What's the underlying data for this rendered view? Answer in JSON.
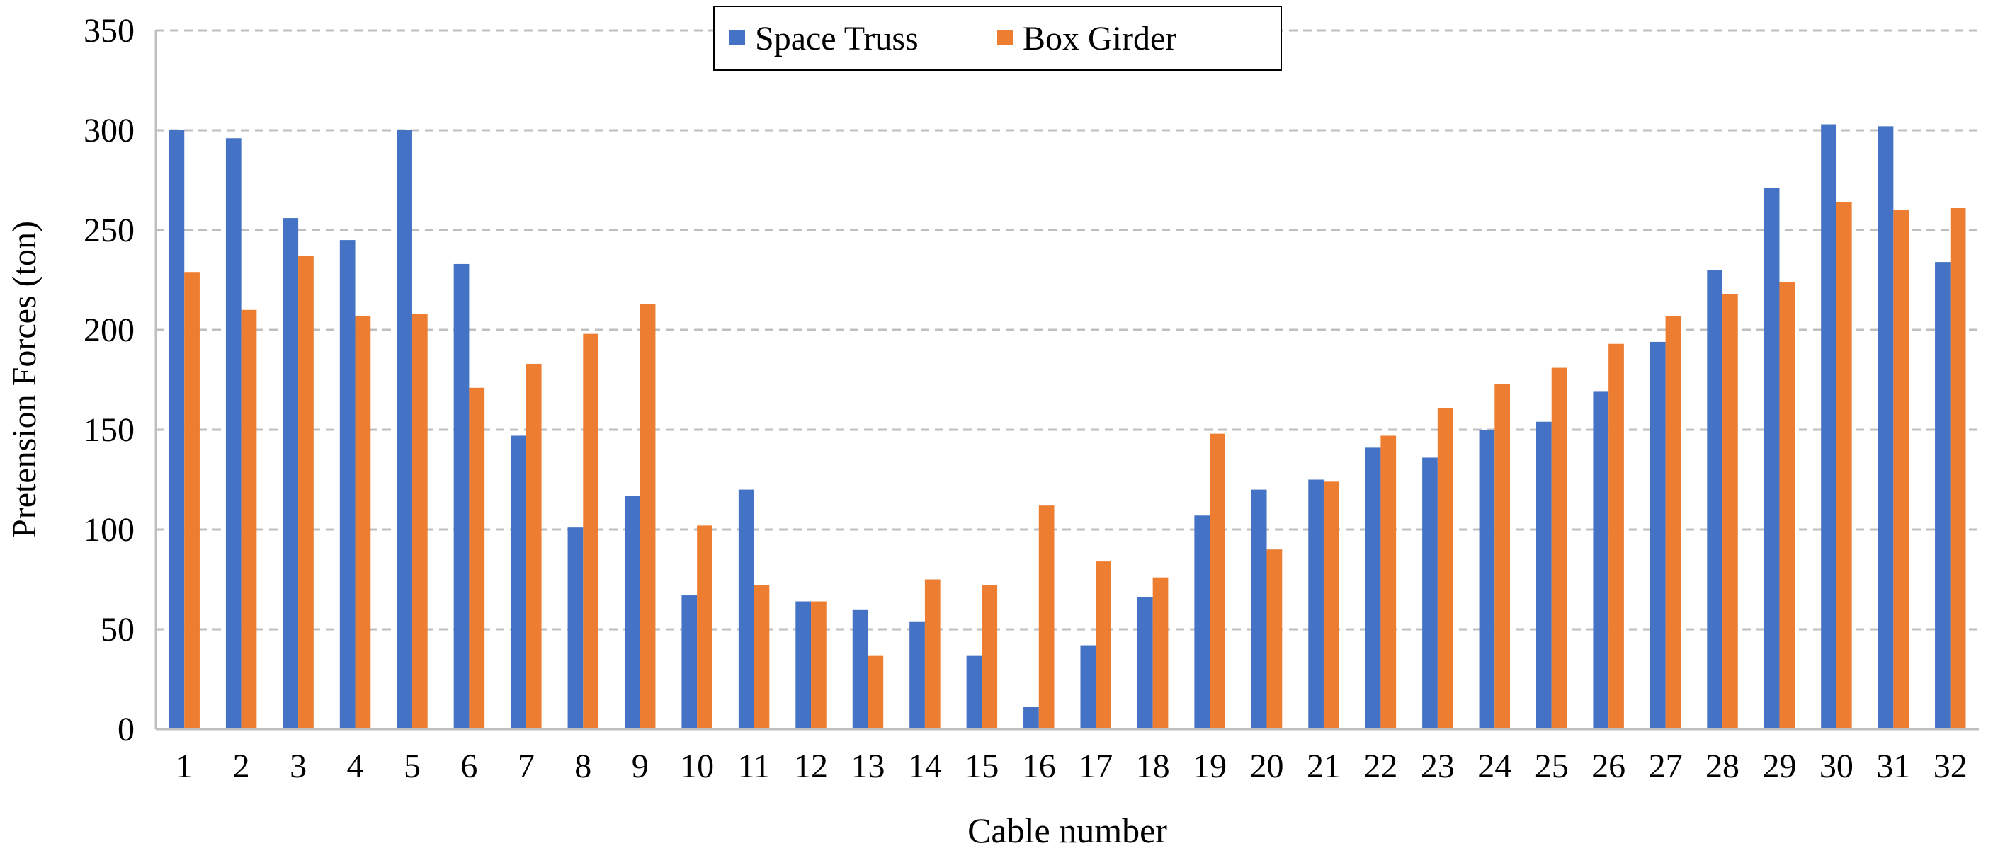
{
  "chart_data": {
    "type": "bar",
    "title": "",
    "xlabel": "Cable number",
    "ylabel": "Pretension Forces (ton)",
    "ylim": [
      0,
      350
    ],
    "yticks": [
      0,
      50,
      100,
      150,
      200,
      250,
      300,
      350
    ],
    "grid": true,
    "legend_position": "top-center",
    "categories": [
      "1",
      "2",
      "3",
      "4",
      "5",
      "6",
      "7",
      "8",
      "9",
      "10",
      "11",
      "12",
      "13",
      "14",
      "15",
      "16",
      "17",
      "18",
      "19",
      "20",
      "21",
      "22",
      "23",
      "24",
      "25",
      "26",
      "27",
      "28",
      "29",
      "30",
      "31",
      "32"
    ],
    "series": [
      {
        "name": "Space Truss",
        "color": "#4472C4",
        "values": [
          300,
          296,
          256,
          245,
          300,
          233,
          147,
          101,
          117,
          67,
          120,
          64,
          60,
          54,
          37,
          11,
          42,
          66,
          107,
          120,
          125,
          141,
          136,
          150,
          154,
          169,
          194,
          230,
          271,
          303,
          302,
          234
        ]
      },
      {
        "name": "Box Girder",
        "color": "#ED7D31",
        "values": [
          229,
          210,
          237,
          207,
          208,
          171,
          183,
          198,
          213,
          102,
          72,
          64,
          37,
          75,
          72,
          112,
          84,
          76,
          148,
          90,
          124,
          147,
          161,
          173,
          181,
          193,
          207,
          218,
          224,
          264,
          260,
          261
        ]
      }
    ]
  }
}
